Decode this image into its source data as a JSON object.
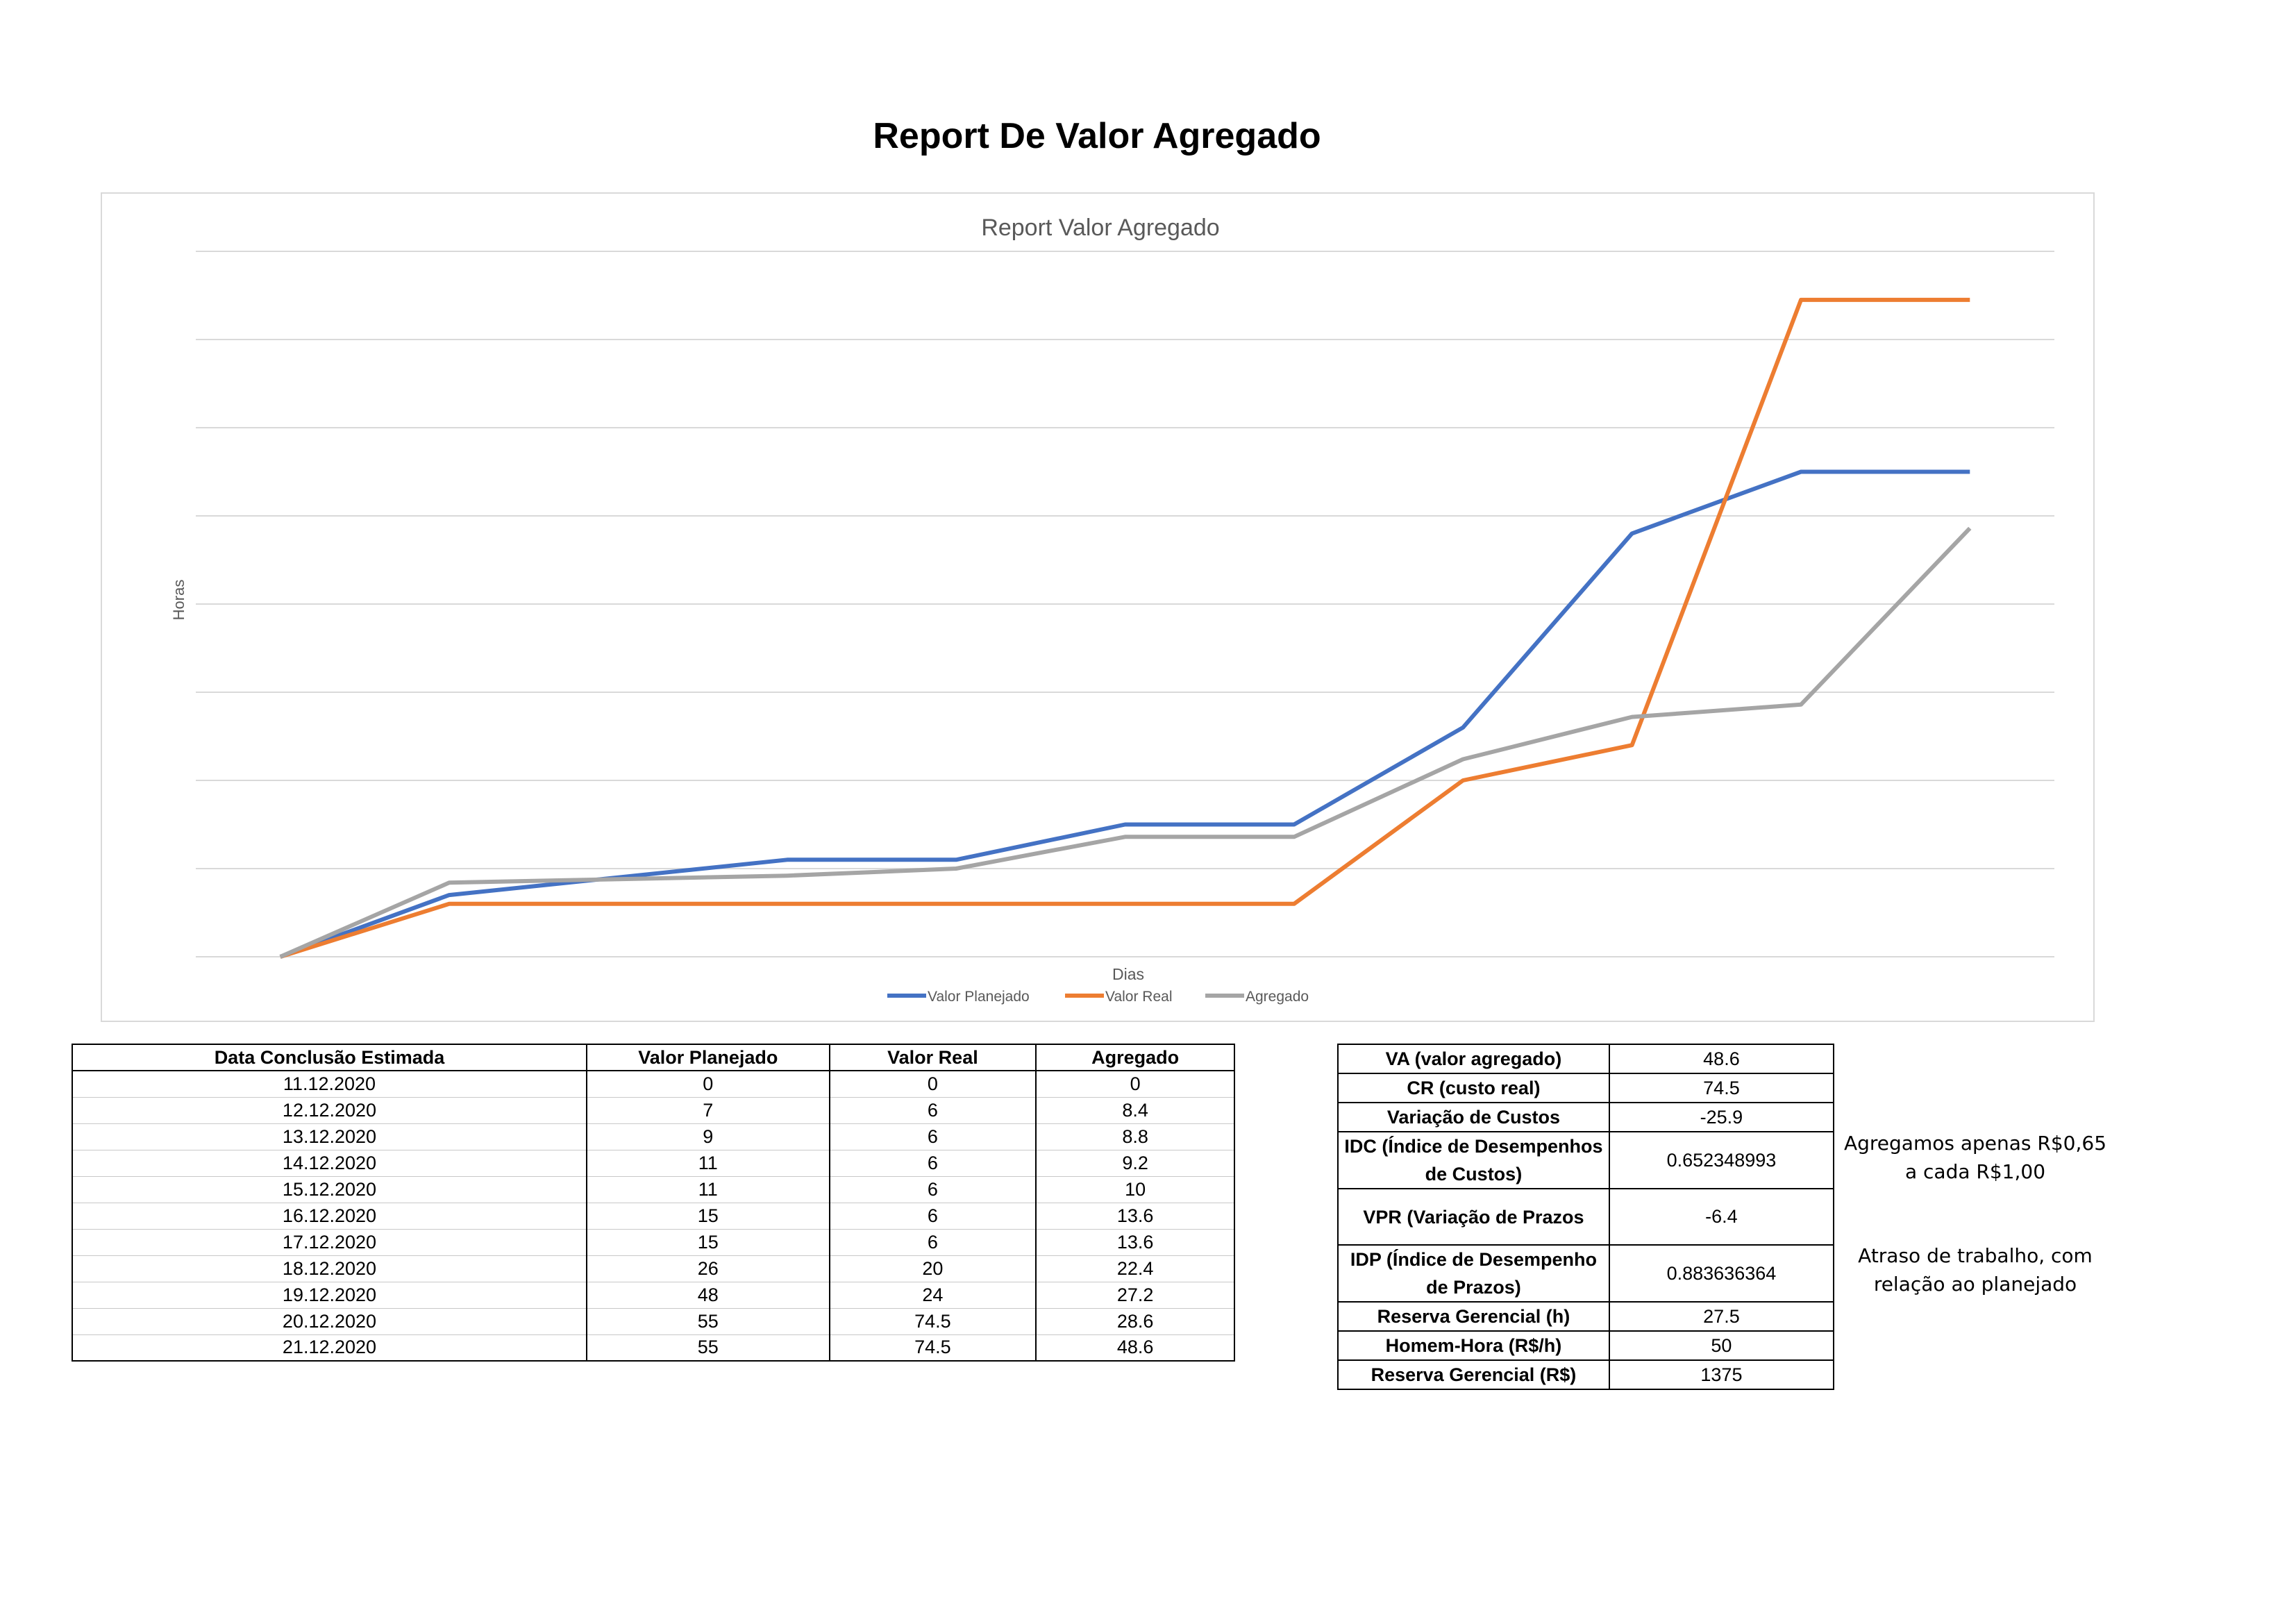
{
  "page": {
    "title": "Report De Valor Agregado"
  },
  "chart_data": {
    "type": "line",
    "title": "Report Valor Agregado",
    "xlabel": "Dias",
    "ylabel": "Horas",
    "x": [
      "11.12.2020",
      "12.12.2020",
      "13.12.2020",
      "14.12.2020",
      "15.12.2020",
      "16.12.2020",
      "17.12.2020",
      "18.12.2020",
      "19.12.2020",
      "20.12.2020",
      "21.12.2020"
    ],
    "ylim": [
      0,
      80
    ],
    "grid": true,
    "legend_position": "bottom",
    "series": [
      {
        "name": "Valor Planejado",
        "color": "#4472c4",
        "values": [
          0,
          7,
          9,
          11,
          11,
          15,
          15,
          26,
          48,
          55,
          55
        ]
      },
      {
        "name": "Valor Real",
        "color": "#ed7d31",
        "values": [
          0,
          6,
          6,
          6,
          6,
          6,
          6,
          20,
          24,
          74.5,
          74.5
        ]
      },
      {
        "name": "Agregado",
        "color": "#a5a5a5",
        "values": [
          0,
          8.4,
          8.8,
          9.2,
          10,
          13.6,
          13.6,
          22.4,
          27.2,
          28.6,
          48.6
        ]
      }
    ]
  },
  "data_table": {
    "headers": [
      "Data Conclusão Estimada",
      "Valor Planejado",
      "Valor Real",
      "Agregado"
    ],
    "rows": [
      [
        "11.12.2020",
        "0",
        "0",
        "0"
      ],
      [
        "12.12.2020",
        "7",
        "6",
        "8.4"
      ],
      [
        "13.12.2020",
        "9",
        "6",
        "8.8"
      ],
      [
        "14.12.2020",
        "11",
        "6",
        "9.2"
      ],
      [
        "15.12.2020",
        "11",
        "6",
        "10"
      ],
      [
        "16.12.2020",
        "15",
        "6",
        "13.6"
      ],
      [
        "17.12.2020",
        "15",
        "6",
        "13.6"
      ],
      [
        "18.12.2020",
        "26",
        "20",
        "22.4"
      ],
      [
        "19.12.2020",
        "48",
        "24",
        "27.2"
      ],
      [
        "20.12.2020",
        "55",
        "74.5",
        "28.6"
      ],
      [
        "21.12.2020",
        "55",
        "74.5",
        "48.6"
      ]
    ]
  },
  "kpi_table": {
    "rows": [
      {
        "label": "VA (valor agregado)",
        "value": "48.6"
      },
      {
        "label": "CR (custo real)",
        "value": "74.5"
      },
      {
        "label": "Variação de Custos",
        "value": "-25.9"
      },
      {
        "label": "IDC (Índice de Desempenhos de Custos)",
        "value": "0.652348993"
      },
      {
        "label": "VPR (Variação de Prazos",
        "value": "-6.4"
      },
      {
        "label": "IDP (Índice de Desempenho de Prazos)",
        "value": "0.883636364"
      },
      {
        "label": "Reserva Gerencial (h)",
        "value": "27.5"
      },
      {
        "label": "Homem-Hora (R$/h)",
        "value": "50"
      },
      {
        "label": "Reserva Gerencial (R$)",
        "value": "1375"
      }
    ]
  },
  "notes": {
    "idc": "Agregamos apenas R$0,65 a cada R$1,00",
    "idp": "Atraso de trabalho, com relação ao planejado"
  }
}
